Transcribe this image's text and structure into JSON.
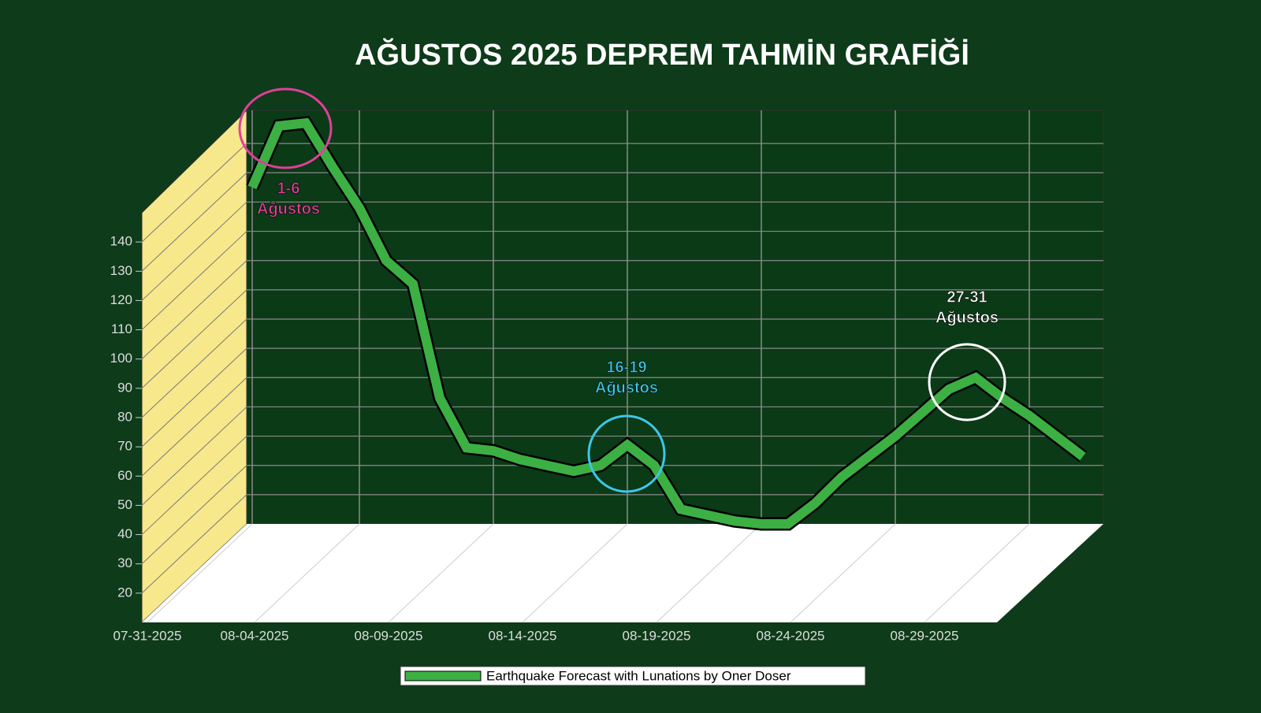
{
  "chart_data": {
    "type": "line3d",
    "title": "AĞUSTOS 2025 DEPREM TAHMİN GRAFİĞİ",
    "x": [
      "07-31-2025",
      "08-01-2025",
      "08-02-2025",
      "08-03-2025",
      "08-04-2025",
      "08-05-2025",
      "08-06-2025",
      "08-07-2025",
      "08-08-2025",
      "08-09-2025",
      "08-10-2025",
      "08-11-2025",
      "08-12-2025",
      "08-13-2025",
      "08-14-2025",
      "08-15-2025",
      "08-16-2025",
      "08-17-2025",
      "08-18-2025",
      "08-19-2025",
      "08-20-2025",
      "08-21-2025",
      "08-22-2025",
      "08-23-2025",
      "08-24-2025",
      "08-25-2025",
      "08-26-2025",
      "08-27-2025",
      "08-28-2025",
      "08-29-2025",
      "08-30-2025",
      "08-31-2025"
    ],
    "xticks": [
      "07-31-2025",
      "08-04-2025",
      "08-09-2025",
      "08-14-2025",
      "08-19-2025",
      "08-24-2025",
      "08-29-2025"
    ],
    "series": [
      {
        "name": "Earthquake Forecast with Lunations by Oner Doser",
        "color": "#3cb043",
        "values": [
          125,
          146,
          147,
          132,
          118,
          100,
          92,
          53,
          36,
          35,
          32,
          30,
          28,
          30,
          37,
          30,
          15,
          13,
          11,
          10,
          10,
          17,
          26,
          33,
          40,
          48,
          56,
          60,
          53,
          47,
          40,
          33
        ]
      }
    ],
    "ylim": [
      10,
      150
    ],
    "yticks": [
      20,
      30,
      40,
      50,
      60,
      70,
      80,
      90,
      100,
      110,
      120,
      130,
      140
    ],
    "grid": true,
    "annotations": [
      {
        "lines": [
          "1-6",
          "Ağustos"
        ],
        "color": "#e0409a"
      },
      {
        "lines": [
          "16-19",
          "Ağustos"
        ],
        "color": "#3ec6e8"
      },
      {
        "lines": [
          "27-31",
          "Ağustos"
        ],
        "color": "#ffffff"
      }
    ]
  }
}
